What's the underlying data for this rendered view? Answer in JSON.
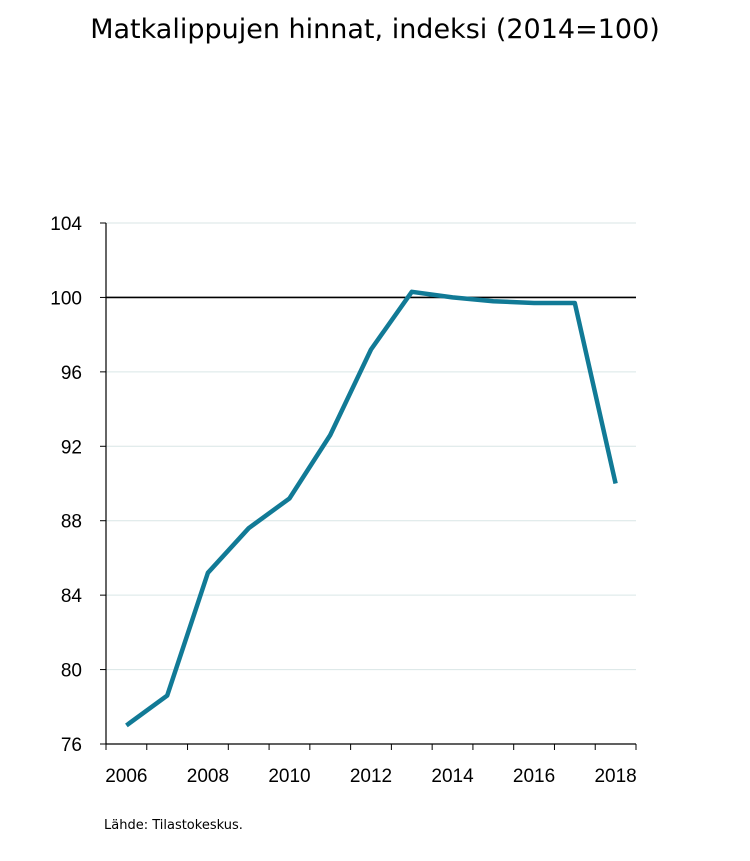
{
  "title": "Matkalippujen hinnat, indeksi (2014=100)",
  "source": "Lähde: Tilastokeskus.",
  "colors": {
    "line": "#117a96",
    "reference_line": "#000000",
    "grid": "#d9e6e6"
  },
  "chart_data": {
    "type": "line",
    "title": "Matkalippujen hinnat, indeksi (2014=100)",
    "xlabel": "",
    "ylabel": "",
    "xlim": [
      2005.5,
      2018.5
    ],
    "ylim": [
      76,
      104
    ],
    "yticks": [
      76,
      80,
      84,
      88,
      92,
      96,
      100,
      104
    ],
    "xticks": [
      2006,
      2008,
      2010,
      2012,
      2014,
      2016,
      2018
    ],
    "reference_line": 100,
    "grid": true,
    "series": [
      {
        "x": [
          2006.0,
          2007.0,
          2008.0,
          2009.0,
          2010.0,
          2011.0,
          2012.0,
          2013.0,
          2014.0,
          2015.0,
          2016.0,
          2017.0,
          2018.0
        ],
        "y": [
          77.0,
          78.6,
          85.2,
          87.6,
          89.2,
          92.6,
          97.2,
          100.3,
          100.0,
          99.8,
          99.7,
          99.7,
          90.0
        ]
      }
    ]
  }
}
